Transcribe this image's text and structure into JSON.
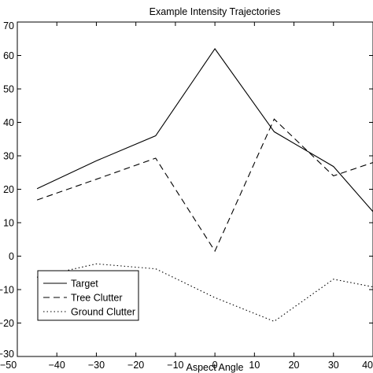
{
  "chart_data": {
    "type": "line",
    "title": "Example Intensity Trajectories",
    "xlabel": "Aspect Angle",
    "ylabel": "",
    "xlim": [
      -50,
      40
    ],
    "ylim": [
      -30,
      70
    ],
    "xticks": [
      -50,
      -40,
      -30,
      -20,
      -10,
      0,
      10,
      20,
      30,
      40
    ],
    "yticks": [
      -30,
      -20,
      -10,
      0,
      10,
      20,
      30,
      40,
      50,
      60,
      70
    ],
    "grid": false,
    "legend_position": "bottom-left",
    "series": [
      {
        "name": "Target",
        "style": "solid",
        "x": [
          -45,
          -30,
          -15,
          0,
          15,
          30,
          40
        ],
        "y": [
          20.2,
          28.5,
          36,
          62,
          37.2,
          26.8,
          13.3
        ]
      },
      {
        "name": "Tree Clutter",
        "style": "dashed",
        "x": [
          -45,
          -30,
          -15,
          0,
          15,
          30,
          40
        ],
        "y": [
          16.8,
          23,
          29.3,
          1.5,
          41,
          24,
          28
        ]
      },
      {
        "name": "Ground Clutter",
        "style": "dotted",
        "x": [
          -45,
          -30,
          -15,
          0,
          15,
          30,
          40
        ],
        "y": [
          -6.3,
          -2.3,
          -3.8,
          -12.4,
          -19.5,
          -6.9,
          -9.2
        ]
      }
    ]
  }
}
